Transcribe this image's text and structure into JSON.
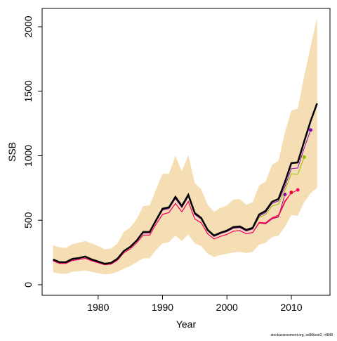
{
  "chart_data": {
    "type": "line",
    "xlabel": "Year",
    "ylabel": "SSB",
    "caption": "stockassessment.org, sd30best2, r4848",
    "x": [
      1973,
      1974,
      1975,
      1976,
      1977,
      1978,
      1979,
      1980,
      1981,
      1982,
      1983,
      1984,
      1985,
      1986,
      1987,
      1988,
      1989,
      1990,
      1991,
      1992,
      1993,
      1994,
      1995,
      1996,
      1997,
      1998,
      1999,
      2000,
      2001,
      2002,
      2003,
      2004,
      2005,
      2006,
      2007,
      2008,
      2009,
      2010,
      2011,
      2012,
      2013,
      2014
    ],
    "xlim": [
      1971.3,
      2016
    ],
    "xticks": [
      1980,
      1990,
      2000,
      2010
    ],
    "ylim": [
      -82,
      2142
    ],
    "yticks": [
      0,
      500,
      1000,
      1500,
      2000
    ],
    "band": {
      "color": "#f5deb3",
      "lower": [
        98,
        85,
        85,
        100,
        105,
        110,
        100,
        90,
        80,
        85,
        100,
        125,
        145,
        175,
        205,
        205,
        270,
        320,
        330,
        380,
        340,
        390,
        320,
        300,
        240,
        215,
        230,
        240,
        250,
        255,
        245,
        255,
        310,
        325,
        370,
        380,
        450,
        540,
        535,
        640,
        710,
        752
      ],
      "upper": [
        305,
        290,
        285,
        315,
        325,
        340,
        320,
        300,
        275,
        280,
        320,
        410,
        445,
        510,
        610,
        615,
        740,
        860,
        860,
        1000,
        880,
        1005,
        790,
        740,
        620,
        565,
        595,
        615,
        660,
        665,
        620,
        640,
        770,
        800,
        930,
        960,
        1180,
        1350,
        1365,
        1620,
        1850,
        2070
      ]
    },
    "series": [
      {
        "color": "#9000a0",
        "width": 1,
        "marker": true,
        "values": [
          185,
          165,
          165,
          188,
          195,
          205,
          185,
          170,
          155,
          160,
          190,
          248,
          278,
          325,
          385,
          385,
          470,
          545,
          560,
          630,
          565,
          645,
          510,
          480,
          395,
          355,
          375,
          390,
          415,
          420,
          395,
          405,
          478,
          472,
          510,
          525,
          700,
          null,
          null,
          null,
          null,
          null
        ]
      },
      {
        "color": "#e8002a",
        "width": 1,
        "marker": true,
        "values": [
          185,
          165,
          165,
          188,
          195,
          205,
          185,
          170,
          155,
          160,
          190,
          248,
          278,
          325,
          385,
          385,
          470,
          545,
          560,
          630,
          565,
          645,
          510,
          480,
          395,
          355,
          375,
          390,
          415,
          420,
          395,
          405,
          480,
          475,
          515,
          530,
          640,
          715,
          null,
          null,
          null,
          null
        ]
      },
      {
        "color": "#ff0066",
        "width": 1,
        "marker": true,
        "values": [
          185,
          165,
          165,
          188,
          195,
          205,
          185,
          170,
          155,
          160,
          190,
          248,
          278,
          325,
          385,
          385,
          470,
          545,
          560,
          630,
          565,
          645,
          510,
          480,
          395,
          355,
          375,
          390,
          415,
          420,
          395,
          405,
          485,
          480,
          520,
          540,
          650,
          710,
          735,
          null,
          null,
          null
        ]
      },
      {
        "color": "#8dc000",
        "width": 1,
        "marker": true,
        "values": [
          192,
          172,
          172,
          196,
          203,
          214,
          192,
          176,
          160,
          166,
          198,
          258,
          290,
          338,
          402,
          402,
          492,
          578,
          590,
          668,
          598,
          685,
          545,
          508,
          418,
          374,
          396,
          412,
          438,
          443,
          416,
          432,
          520,
          545,
          610,
          625,
          730,
          860,
          855,
          990,
          null,
          null
        ]
      },
      {
        "color": "#9000c0",
        "width": 1,
        "marker": true,
        "values": [
          192,
          172,
          172,
          196,
          203,
          214,
          192,
          176,
          160,
          166,
          198,
          258,
          290,
          338,
          402,
          402,
          492,
          578,
          590,
          668,
          598,
          685,
          545,
          508,
          418,
          374,
          396,
          412,
          438,
          443,
          416,
          432,
          530,
          560,
          630,
          650,
          760,
          900,
          905,
          1060,
          1200,
          null
        ]
      },
      {
        "color": "#000000",
        "width": 2.5,
        "marker": false,
        "values": [
          196,
          175,
          175,
          200,
          207,
          218,
          196,
          180,
          163,
          169,
          202,
          262,
          294,
          343,
          409,
          409,
          501,
          589,
          600,
          681,
          610,
          697,
          556,
          518,
          425,
          381,
          403,
          420,
          447,
          452,
          425,
          441,
          545,
          572,
          643,
          665,
          796,
          943,
          948,
          1112,
          1270,
          1406
        ]
      }
    ]
  }
}
